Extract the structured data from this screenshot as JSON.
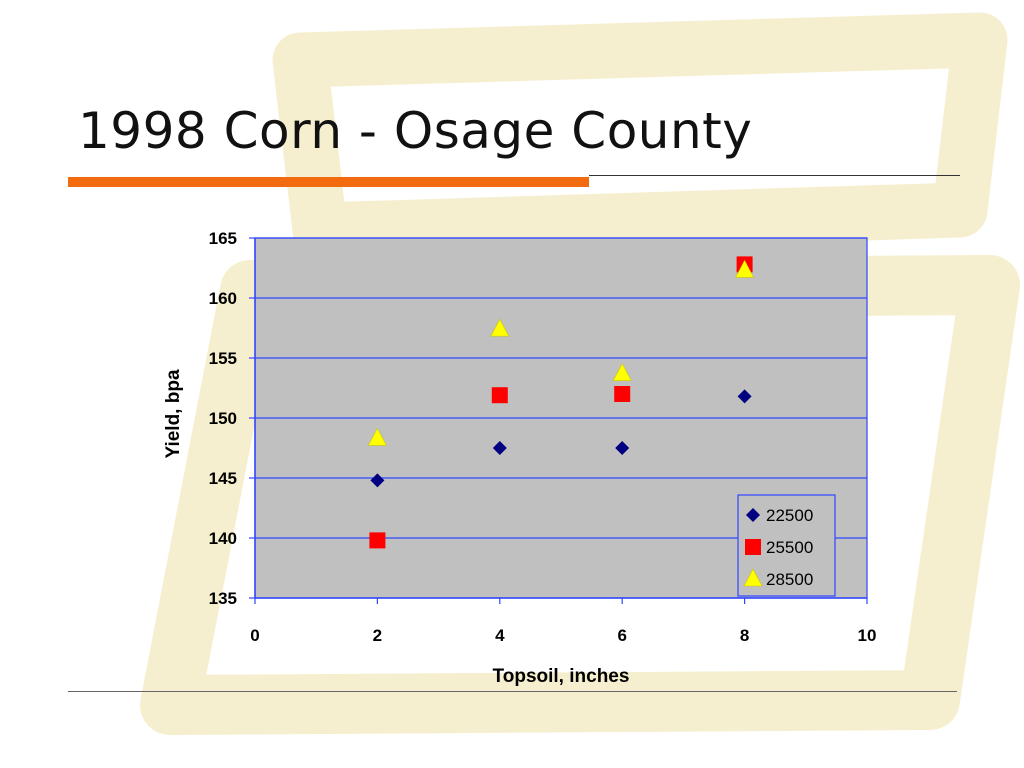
{
  "slide": {
    "title": "1998 Corn - Osage County"
  },
  "colors": {
    "accent_orange": "#f26b10",
    "plot_background": "#c0c0c0",
    "gridline": "#2f46ff",
    "watermark": "#f6efcf"
  },
  "chart_data": {
    "type": "scatter",
    "xlabel": "Topsoil, inches",
    "ylabel": "Yield, bpa",
    "xlim": [
      0,
      10
    ],
    "ylim": [
      135,
      165
    ],
    "xticks": [
      0,
      2,
      4,
      6,
      8,
      10
    ],
    "yticks": [
      135,
      140,
      145,
      150,
      155,
      160,
      165
    ],
    "grid": true,
    "legend_position": "bottom-right",
    "series": [
      {
        "name": "22500",
        "marker": "diamond",
        "color": "#000080",
        "points": [
          [
            2,
            144.8
          ],
          [
            4,
            147.5
          ],
          [
            6,
            147.5
          ],
          [
            8,
            151.8
          ]
        ]
      },
      {
        "name": "25500",
        "marker": "square",
        "color": "#ff0000",
        "points": [
          [
            2,
            139.8
          ],
          [
            4,
            151.9
          ],
          [
            6,
            152.0
          ],
          [
            8,
            162.8
          ]
        ]
      },
      {
        "name": "28500",
        "marker": "triangle",
        "color": "#ffff00",
        "points": [
          [
            2,
            148.3
          ],
          [
            4,
            157.4
          ],
          [
            6,
            153.7
          ],
          [
            8,
            162.3
          ]
        ]
      }
    ]
  }
}
